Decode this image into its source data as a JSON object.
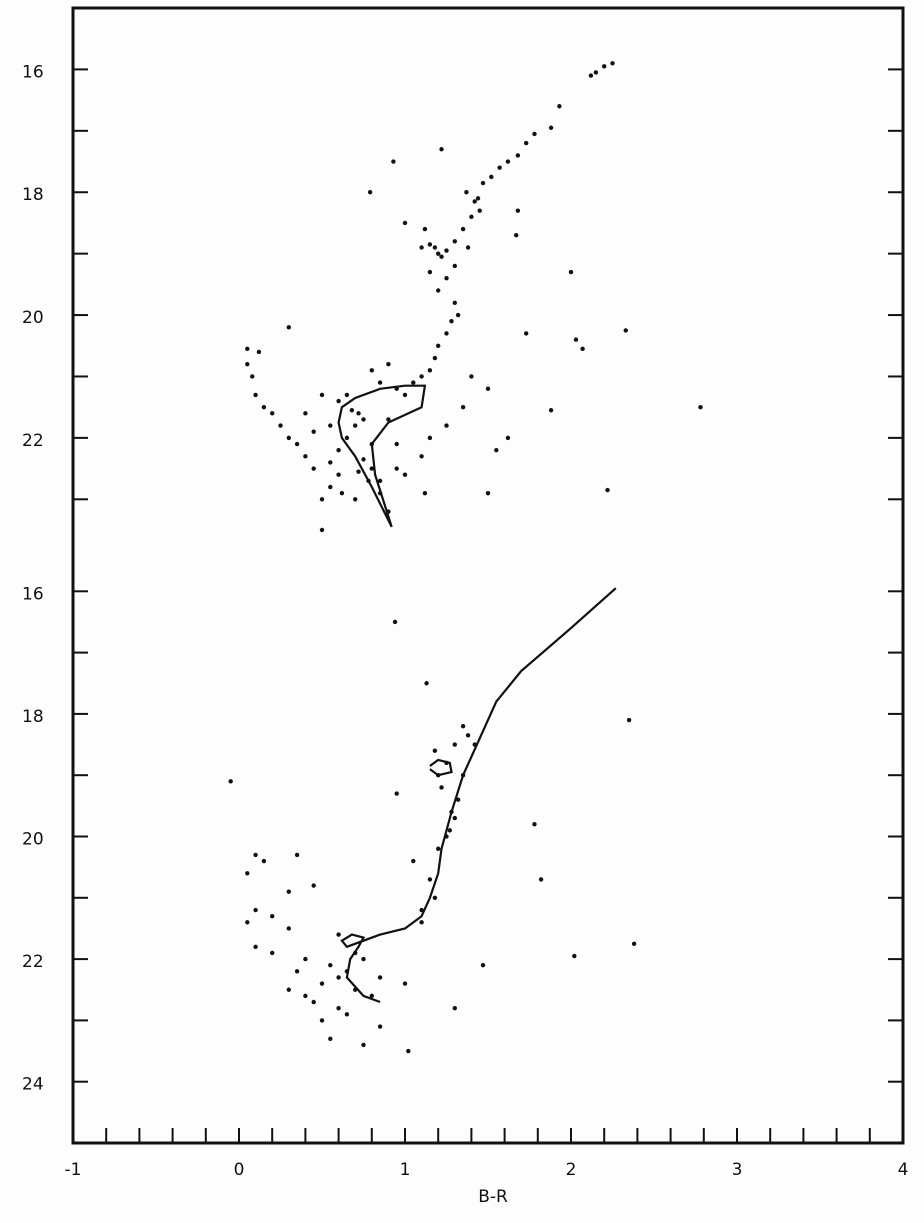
{
  "chart_data": [
    {
      "type": "scatter",
      "xlim": [
        -1,
        4
      ],
      "ylim": [
        15,
        23.5
      ],
      "yticks": [
        16,
        18,
        20,
        22
      ],
      "yminorticks": [
        17,
        19,
        21,
        23
      ],
      "color": "#111111",
      "points": {
        "x": [
          2.25,
          2.2,
          2.15,
          2.12,
          1.93,
          1.88,
          1.78,
          1.73,
          1.68,
          1.62,
          1.57,
          1.52,
          1.47,
          1.44,
          1.42,
          1.37,
          0.93,
          0.79,
          1.22,
          1.68,
          1.67,
          2.0,
          2.33,
          2.03,
          2.07,
          1.73,
          1.88,
          2.78,
          2.22,
          1.55,
          1.62,
          1.5,
          0.3,
          1.2,
          1.18,
          1.15,
          1.22,
          1.1,
          1.25,
          1.3,
          1.35,
          1.4,
          1.45,
          1.38,
          1.3,
          1.25,
          1.2,
          1.15,
          1.12,
          1.0,
          1.3,
          1.32,
          1.28,
          1.25,
          1.2,
          1.18,
          1.15,
          1.1,
          1.05,
          1.0,
          0.95,
          0.85,
          0.8,
          0.9,
          1.4,
          1.5,
          1.35,
          1.25,
          1.15,
          1.1,
          1.12,
          0.55,
          0.6,
          0.65,
          0.7,
          0.72,
          0.68,
          0.75,
          0.8,
          0.75,
          0.8,
          0.78,
          0.85,
          0.9,
          0.6,
          0.55,
          0.5,
          0.45,
          0.4,
          0.35,
          0.3,
          0.25,
          0.2,
          0.15,
          0.1,
          0.08,
          0.05,
          0.12,
          0.05,
          0.5,
          0.55,
          0.45,
          0.4,
          0.6,
          0.65,
          0.9,
          0.95,
          0.95,
          1.0,
          0.85,
          0.7,
          0.5,
          0.62,
          0.72
        ],
        "y": [
          15.9,
          15.95,
          16.05,
          16.1,
          16.6,
          16.95,
          17.05,
          17.2,
          17.4,
          17.5,
          17.6,
          17.75,
          17.85,
          18.1,
          18.15,
          18.0,
          17.5,
          18.0,
          17.3,
          18.3,
          18.7,
          19.3,
          20.25,
          20.4,
          20.55,
          20.3,
          21.55,
          21.5,
          22.85,
          22.2,
          22.0,
          22.9,
          20.2,
          19.0,
          18.9,
          18.85,
          19.05,
          18.9,
          18.95,
          18.8,
          18.6,
          18.4,
          18.3,
          18.9,
          19.2,
          19.4,
          19.6,
          19.3,
          18.6,
          18.5,
          19.8,
          20.0,
          20.1,
          20.3,
          20.5,
          20.7,
          20.9,
          21.0,
          21.1,
          21.3,
          21.2,
          21.1,
          20.9,
          20.8,
          21.0,
          21.2,
          21.5,
          21.8,
          22.0,
          22.3,
          22.9,
          22.4,
          22.2,
          22.0,
          21.8,
          21.6,
          21.55,
          21.7,
          22.1,
          22.35,
          22.5,
          22.7,
          22.9,
          23.2,
          22.6,
          22.8,
          23.0,
          22.5,
          22.3,
          22.1,
          22.0,
          21.8,
          21.6,
          21.5,
          21.3,
          21.0,
          20.8,
          20.6,
          20.55,
          21.3,
          21.8,
          21.9,
          21.6,
          21.4,
          21.3,
          21.7,
          22.1,
          22.5,
          22.6,
          22.7,
          23.0,
          23.5,
          22.9,
          22.55
        ]
      },
      "curves": [
        {
          "x": [
            0.92,
            0.8,
            0.7,
            0.62,
            0.6,
            0.62,
            0.7,
            0.85,
            1.0,
            1.12,
            1.1,
            0.9,
            0.8,
            0.82,
            0.92
          ],
          "y": [
            23.45,
            22.8,
            22.3,
            22.0,
            21.75,
            21.5,
            21.35,
            21.2,
            21.15,
            21.15,
            21.5,
            21.75,
            22.1,
            22.6,
            23.45
          ]
        }
      ]
    },
    {
      "type": "scatter",
      "xlabel": "B-R",
      "xlim": [
        -1,
        4
      ],
      "ylim": [
        15,
        25
      ],
      "xticks": [
        -1,
        0,
        1,
        2,
        3,
        4
      ],
      "xminorticks": [
        -0.8,
        -0.6,
        -0.4,
        -0.2,
        0.2,
        0.4,
        0.6,
        0.8,
        1.2,
        1.4,
        1.6,
        1.8,
        2.2,
        2.4,
        2.6,
        2.8,
        3.2,
        3.4,
        3.6,
        3.8
      ],
      "yticks": [
        16,
        18,
        20,
        22,
        24
      ],
      "yminorticks": [
        17,
        19,
        21,
        23
      ],
      "color": "#111111",
      "points": {
        "x": [
          0.94,
          1.13,
          2.35,
          1.35,
          1.38,
          1.42,
          1.3,
          1.18,
          1.25,
          1.2,
          1.22,
          0.95,
          1.35,
          1.32,
          1.28,
          1.3,
          1.27,
          1.25,
          1.78,
          1.82,
          1.2,
          1.05,
          1.15,
          1.18,
          1.1,
          1.1,
          -0.05,
          0.1,
          0.15,
          0.35,
          0.05,
          0.3,
          0.45,
          0.1,
          0.2,
          0.05,
          0.3,
          0.6,
          0.1,
          0.2,
          0.4,
          0.55,
          0.35,
          0.6,
          0.5,
          0.7,
          0.8,
          0.45,
          0.6,
          0.5,
          0.55,
          0.75,
          1.02,
          0.85,
          0.65,
          1.0,
          1.3,
          1.47,
          2.02,
          2.38,
          0.7,
          0.75,
          0.65,
          0.85,
          0.4,
          0.3
        ],
        "y": [
          16.5,
          17.5,
          18.1,
          18.2,
          18.35,
          18.5,
          18.5,
          18.6,
          18.8,
          19.0,
          19.2,
          19.3,
          19.0,
          19.4,
          19.6,
          19.7,
          19.9,
          20.0,
          19.8,
          20.7,
          20.2,
          20.4,
          20.7,
          21.0,
          21.2,
          21.4,
          19.1,
          20.3,
          20.4,
          20.3,
          20.6,
          20.9,
          20.8,
          21.2,
          21.3,
          21.4,
          21.5,
          21.6,
          21.8,
          21.9,
          22.0,
          22.1,
          22.2,
          22.3,
          22.4,
          22.5,
          22.6,
          22.7,
          22.8,
          23.0,
          23.3,
          23.4,
          23.5,
          23.1,
          22.9,
          22.4,
          22.8,
          22.1,
          21.95,
          21.75,
          21.9,
          22.0,
          22.2,
          22.3,
          22.6,
          22.5
        ]
      },
      "curves": [
        {
          "x": [
            2.27,
            2.0,
            1.7,
            1.55,
            1.45,
            1.35,
            1.28,
            1.22,
            1.2,
            1.15,
            1.1,
            1.0,
            0.85,
            0.75,
            0.65,
            0.62,
            0.68,
            0.75,
            0.72,
            0.67,
            0.65,
            0.75,
            0.85
          ],
          "y": [
            15.95,
            16.6,
            17.3,
            17.8,
            18.4,
            19.0,
            19.6,
            20.2,
            20.6,
            21.0,
            21.3,
            21.5,
            21.6,
            21.7,
            21.8,
            21.7,
            21.6,
            21.65,
            21.8,
            22.0,
            22.3,
            22.6,
            22.7
          ]
        },
        {
          "x": [
            1.15,
            1.2,
            1.27,
            1.28,
            1.2,
            1.15
          ],
          "y": [
            18.85,
            18.75,
            18.8,
            18.95,
            19.0,
            18.9
          ]
        }
      ]
    }
  ]
}
